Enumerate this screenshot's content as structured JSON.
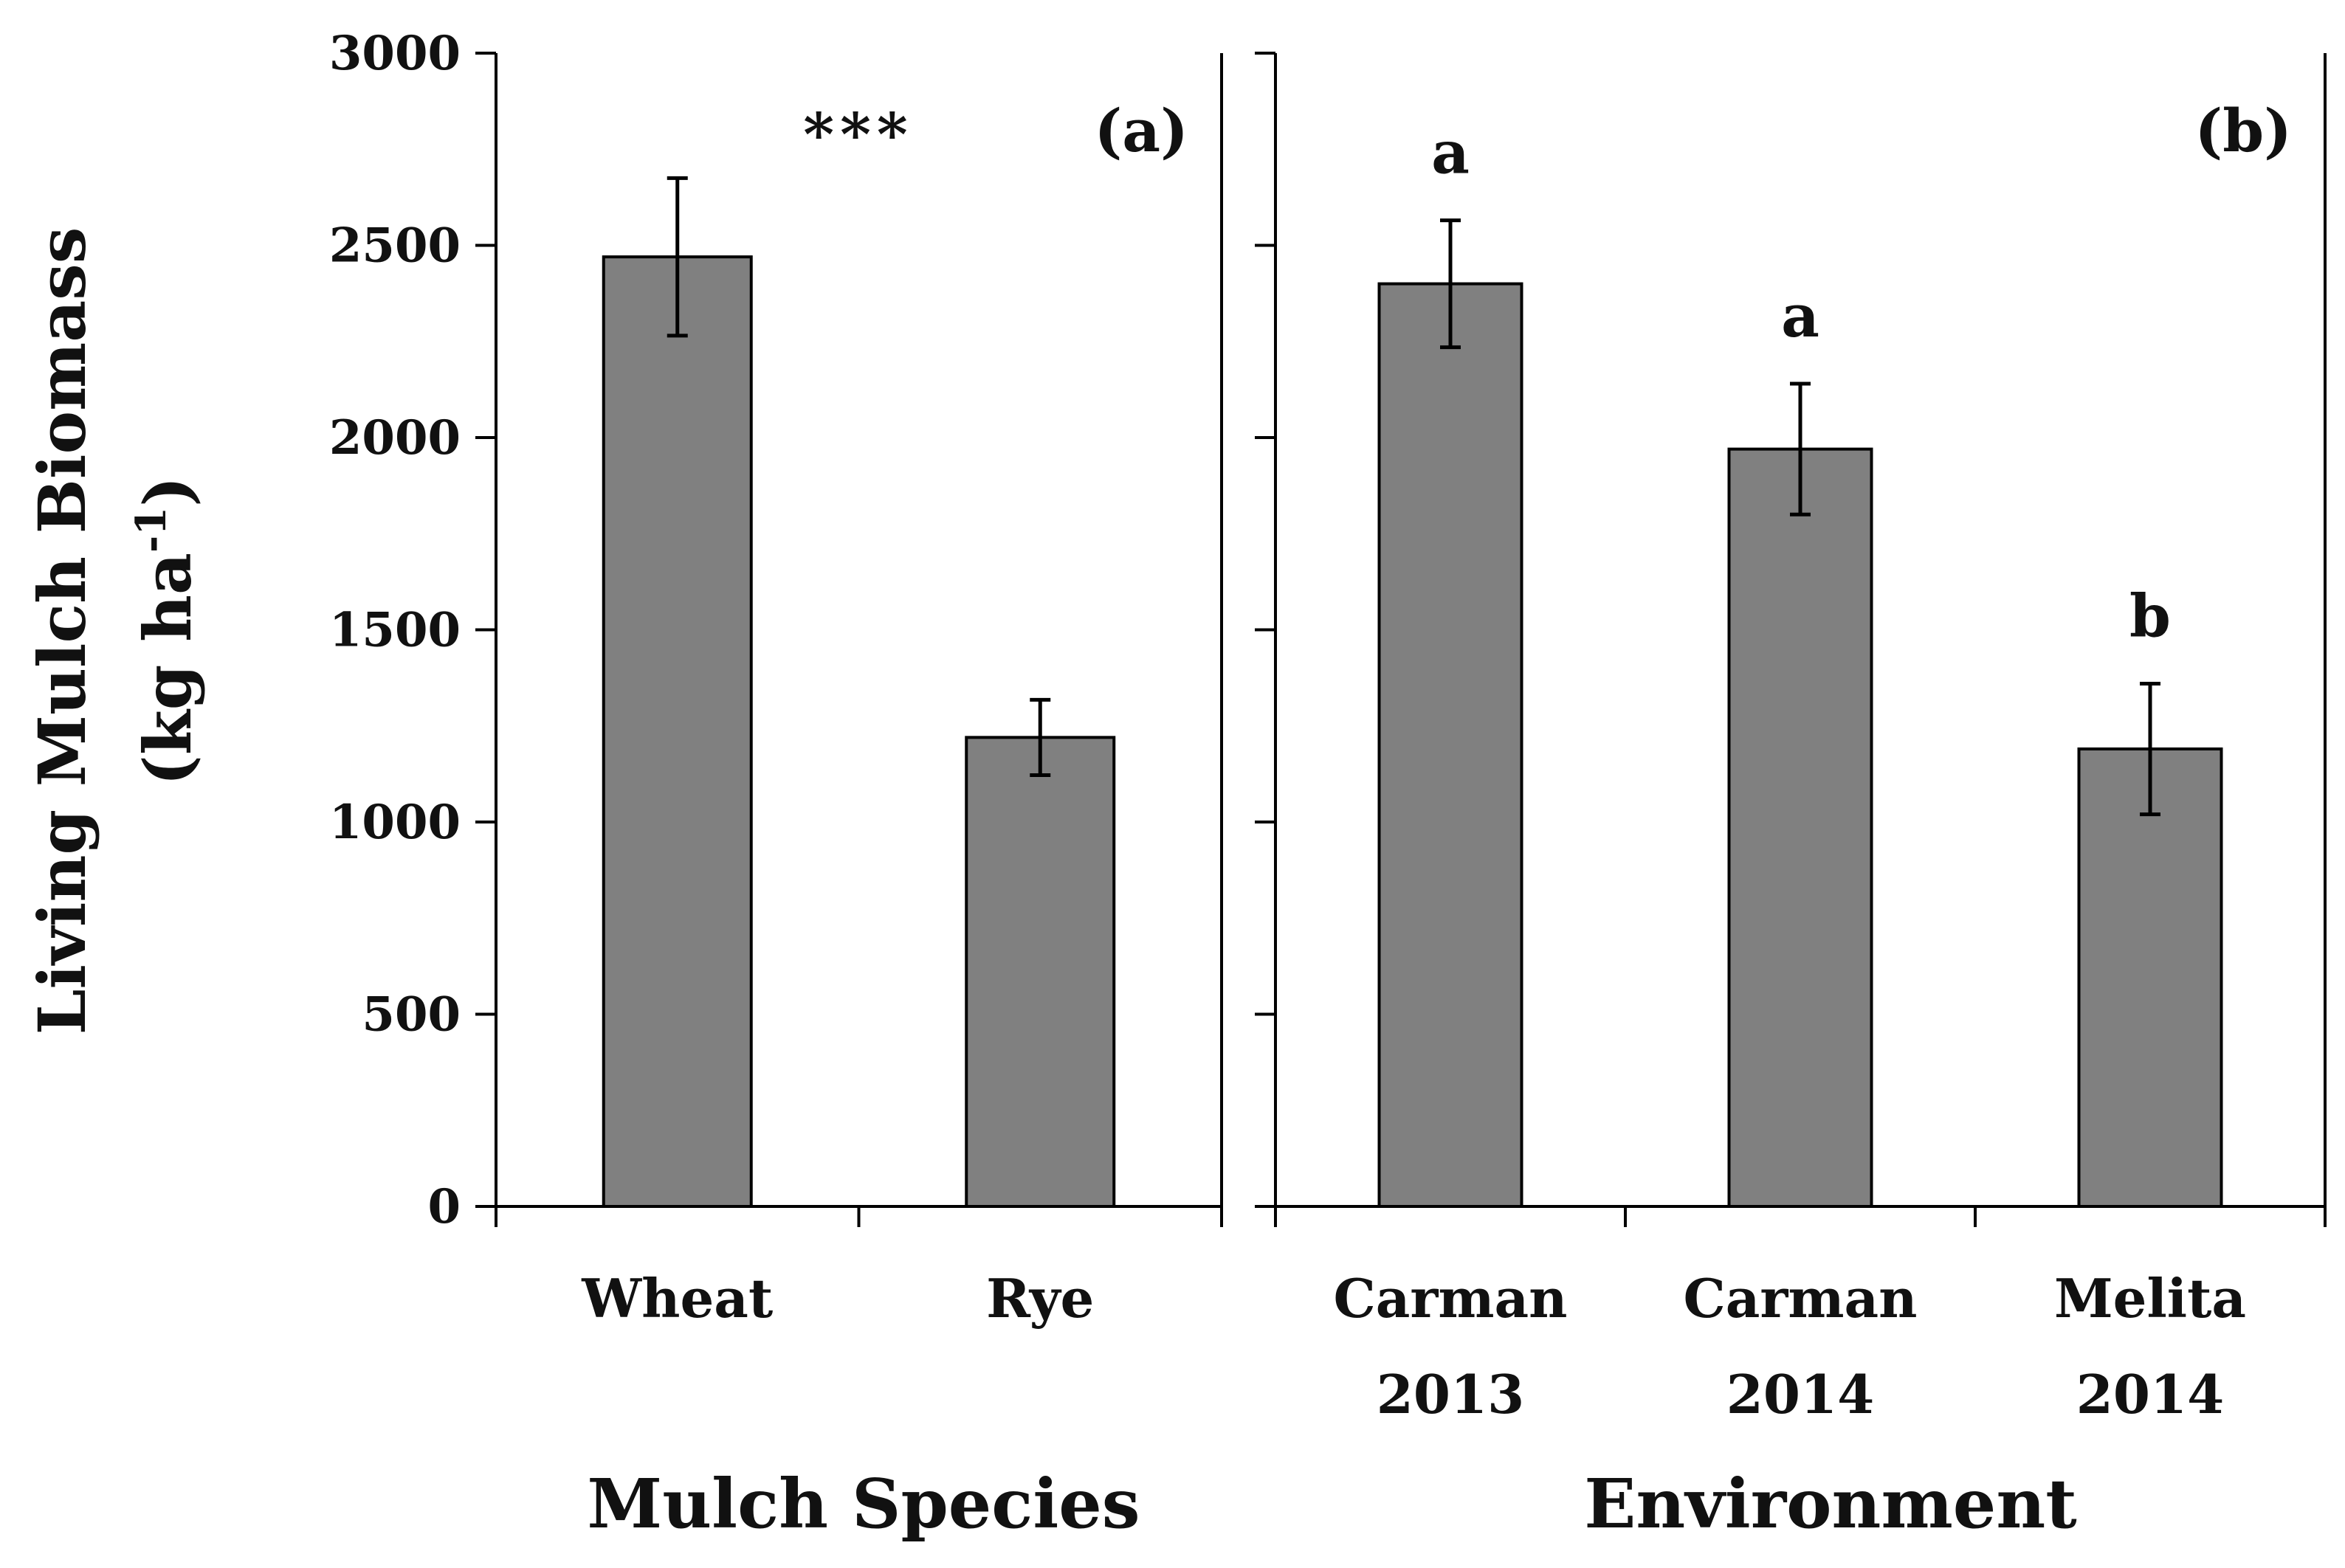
{
  "colors": {
    "bar_fill": "#808080",
    "bar_stroke": "#000000",
    "axis": "#000000",
    "text": "#111111"
  },
  "chart_data": [
    {
      "type": "bar",
      "panel_label": "(a)",
      "categories": [
        [
          "Wheat"
        ],
        [
          "Rye"
        ]
      ],
      "values": [
        2470,
        1220
      ],
      "errors": [
        205,
        98
      ],
      "annotations": [
        "",
        ""
      ],
      "significance": "***",
      "xlabel": "Mulch Species",
      "ylabel_lines": [
        "Living Mulch Biomass",
        "(kg ha",
        "-1",
        ")"
      ],
      "ylim": [
        0,
        3000
      ],
      "yticks": [
        "0",
        "500",
        "1000",
        "1500",
        "2000",
        "2500",
        "3000"
      ],
      "ytick_values": [
        0,
        500,
        1000,
        1500,
        2000,
        2500,
        3000
      ],
      "grid": false,
      "legend": "none"
    },
    {
      "type": "bar",
      "panel_label": "(b)",
      "categories": [
        [
          "Carman",
          "2013"
        ],
        [
          "Carman",
          "2014"
        ],
        [
          "Melita",
          "2014"
        ]
      ],
      "values": [
        2400,
        1970,
        1190
      ],
      "errors": [
        165,
        170,
        170
      ],
      "annotations": [
        "a",
        "a",
        "b"
      ],
      "xlabel": "Environment",
      "ylim": [
        0,
        3000
      ],
      "ytick_values": [
        0,
        500,
        1000,
        1500,
        2000,
        2500,
        3000
      ],
      "grid": false,
      "legend": "none"
    }
  ]
}
